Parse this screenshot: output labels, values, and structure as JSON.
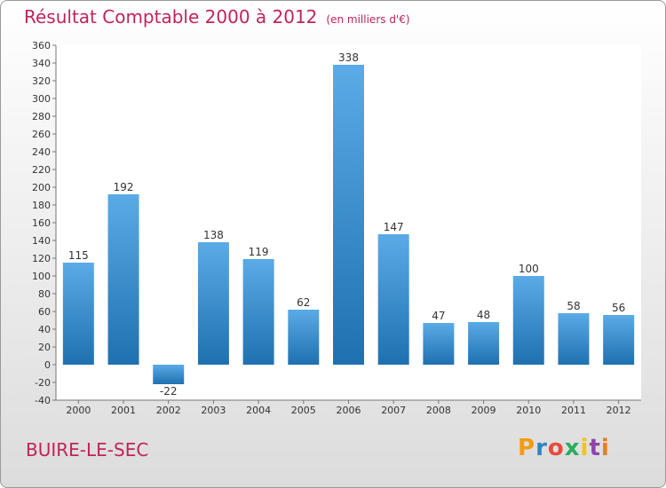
{
  "header": {
    "title": "Résultat Comptable 2000 à 2012",
    "subtitle": "(en milliers d'€)"
  },
  "footer": {
    "location": "BUIRE-LE-SEC",
    "logo": {
      "letters": [
        "P",
        "r",
        "o",
        "x",
        "i",
        "t",
        "i"
      ],
      "colors": [
        "#f39c12",
        "#2e86c1",
        "#e74c3c",
        "#27ae60",
        "#f1c40f",
        "#8e44ad",
        "#e67e22"
      ]
    }
  },
  "chart_data": {
    "type": "bar",
    "categories": [
      "2000",
      "2001",
      "2002",
      "2003",
      "2004",
      "2005",
      "2006",
      "2007",
      "2008",
      "2009",
      "2010",
      "2011",
      "2012"
    ],
    "values": [
      115,
      192,
      -22,
      138,
      119,
      62,
      338,
      147,
      47,
      48,
      100,
      58,
      56
    ],
    "data_labels": [
      "115",
      "192",
      "-22",
      "138",
      "119",
      "62",
      "338",
      "147",
      "47",
      "48",
      "100",
      "58",
      "56"
    ],
    "ylim": [
      -40,
      360
    ],
    "ytick_step": 20,
    "grid": false,
    "colors": {
      "bar_top": "#5aabe6",
      "bar_bottom": "#1f70b0"
    }
  }
}
